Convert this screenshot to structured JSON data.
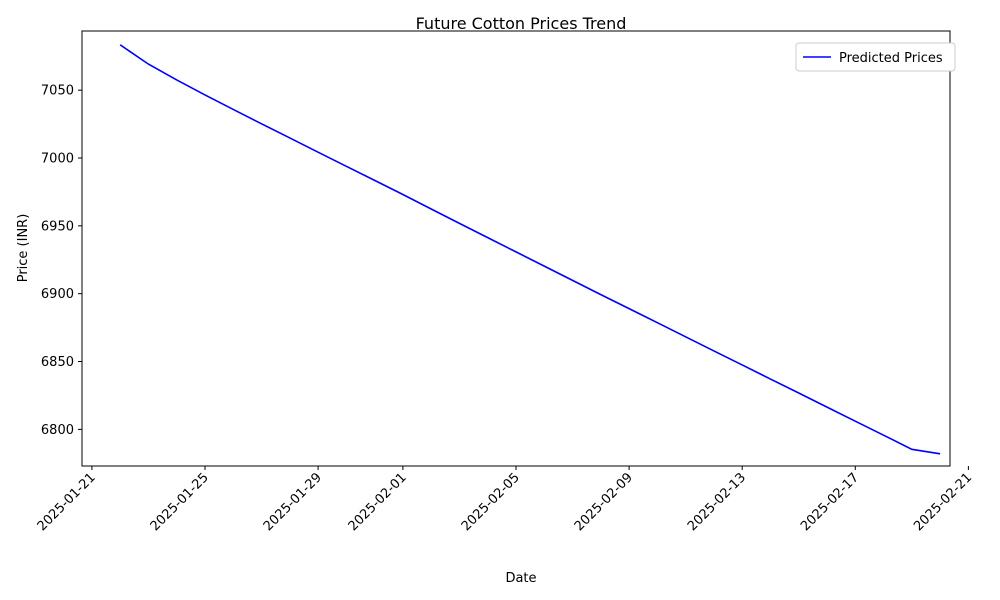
{
  "chart_data": {
    "type": "line",
    "title": "Future Cotton Prices Trend",
    "xlabel": "Date",
    "ylabel": "Price (INR)",
    "x_start": "2025-01-22",
    "x": [
      "2025-01-22",
      "2025-01-23",
      "2025-01-24",
      "2025-01-25",
      "2025-01-26",
      "2025-01-27",
      "2025-01-28",
      "2025-01-29",
      "2025-01-30",
      "2025-01-31",
      "2025-02-01",
      "2025-02-02",
      "2025-02-03",
      "2025-02-04",
      "2025-02-05",
      "2025-02-06",
      "2025-02-07",
      "2025-02-08",
      "2025-02-09",
      "2025-02-10",
      "2025-02-11",
      "2025-02-12",
      "2025-02-13",
      "2025-02-14",
      "2025-02-15",
      "2025-02-16",
      "2025-02-17",
      "2025-02-18",
      "2025-02-19",
      "2025-02-20"
    ],
    "series": [
      {
        "name": "Predicted Prices",
        "color": "#0000ff",
        "values": [
          7083.4,
          7069.2,
          7057.5,
          7046.5,
          7035.8,
          7025.2,
          7014.8,
          7004.3,
          6993.9,
          6983.5,
          6973.1,
          6962.4,
          6951.8,
          6941.3,
          6930.8,
          6920.3,
          6909.8,
          6899.3,
          6889.0,
          6878.6,
          6868.2,
          6857.8,
          6847.5,
          6837.1,
          6826.8,
          6816.4,
          6806.0,
          6795.7,
          6785.3,
          6782.0
        ]
      }
    ],
    "xlim_days": [
      -1.35,
      29.35
    ],
    "ylim": [
      6775.5,
      6096.0
    ],
    "yticks": [
      6800,
      6850,
      6900,
      6950,
      7000,
      7050
    ],
    "xticks": [
      {
        "day": -1,
        "label": "2025-01-21"
      },
      {
        "day": 3,
        "label": "2025-01-25"
      },
      {
        "day": 7,
        "label": "2025-01-29"
      },
      {
        "day": 10,
        "label": "2025-02-01"
      },
      {
        "day": 14,
        "label": "2025-02-05"
      },
      {
        "day": 18,
        "label": "2025-02-09"
      },
      {
        "day": 22,
        "label": "2025-02-13"
      },
      {
        "day": 26,
        "label": "2025-02-17"
      },
      {
        "day": 30,
        "label": "2025-02-21"
      }
    ],
    "legend_position": "top-right"
  }
}
